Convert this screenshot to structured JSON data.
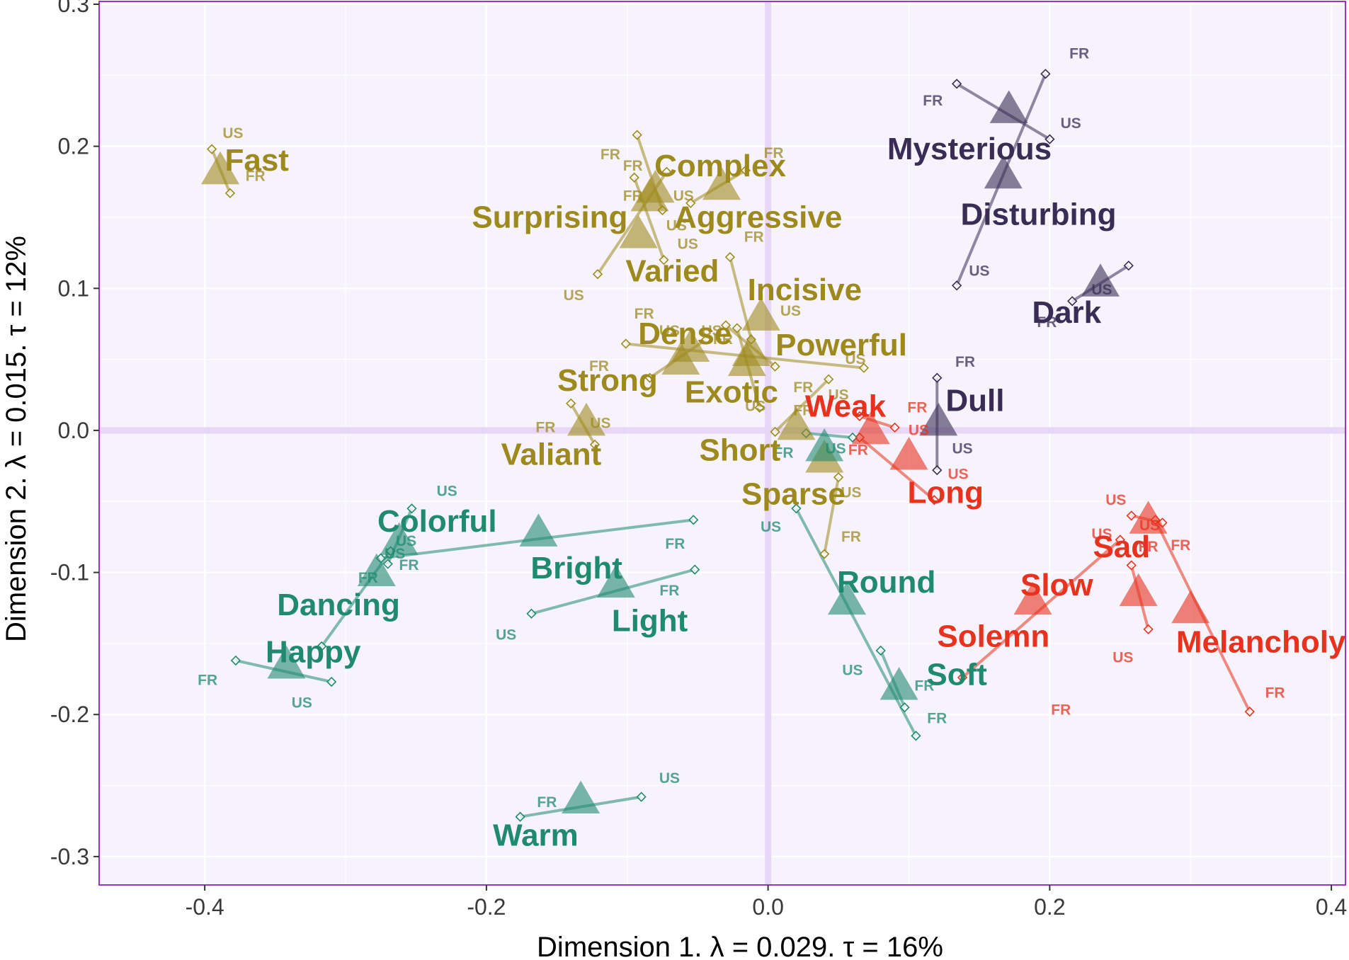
{
  "chart_data": {
    "type": "scatter",
    "xlabel": "Dimension 1.   λ = 0.029.  τ = 16%",
    "ylabel": "Dimension 2.   λ = 0.015.  τ = 12%",
    "xlim": [
      -0.475,
      0.41
    ],
    "ylim": [
      -0.32,
      0.302
    ],
    "x_ticks": [
      -0.4,
      -0.2,
      0.0,
      0.2,
      0.4
    ],
    "x_tick_labels": [
      "-0.4",
      "-0.2",
      "0.0",
      "0.2",
      "0.4"
    ],
    "y_ticks": [
      -0.3,
      -0.2,
      -0.1,
      0.0,
      0.1,
      0.2,
      0.3
    ],
    "y_tick_labels": [
      "-0.3",
      "-0.2",
      "-0.1",
      "0.0",
      "0.1",
      "0.2",
      "0.3"
    ],
    "grid": true,
    "colors": {
      "olive": "#9E8A1C",
      "teal": "#1F8A6E",
      "red": "#E8321E",
      "purple": "#3A2D55",
      "panel": "#F6F3FD",
      "frame": "#9C33C8",
      "zero_line": "#E7D6F5",
      "grid": "#FFFFFF"
    },
    "terms": [
      {
        "name": "Fast",
        "group": "olive",
        "x": -0.389,
        "y": 0.183,
        "us": [
          -0.395,
          0.198
        ],
        "fr": [
          -0.382,
          0.167
        ],
        "us_label_pos": [
          -0.38,
          0.209
        ],
        "fr_label_pos": [
          -0.364,
          0.179
        ]
      },
      {
        "name": "Complex",
        "group": "olive",
        "x": -0.08,
        "y": 0.17,
        "us": [
          -0.075,
          0.155
        ],
        "fr": [
          -0.093,
          0.208
        ],
        "us_label_pos": [
          -0.06,
          0.165
        ],
        "fr_label_pos": [
          -0.112,
          0.194
        ]
      },
      {
        "name": "Surprising",
        "group": "olive",
        "x": -0.092,
        "y": 0.138,
        "us": [
          -0.121,
          0.11
        ],
        "fr": [
          -0.072,
          0.182
        ],
        "us_label_pos": [
          -0.138,
          0.095
        ],
        "fr_label_pos": [
          -0.096,
          0.186
        ]
      },
      {
        "name": "Aggressive",
        "group": "olive",
        "x": -0.033,
        "y": 0.172,
        "us": [
          -0.055,
          0.16
        ],
        "fr": [
          -0.016,
          0.183
        ],
        "us_label_pos": [
          -0.065,
          0.144
        ],
        "fr_label_pos": [
          0.004,
          0.195
        ]
      },
      {
        "name": "Varied",
        "group": "olive",
        "x": -0.084,
        "y": 0.164,
        "us": [
          -0.095,
          0.178
        ],
        "fr": [
          -0.074,
          0.12
        ],
        "us_label_pos": [
          -0.057,
          0.131
        ],
        "fr_label_pos": [
          -0.096,
          0.165
        ]
      },
      {
        "name": "Incisive",
        "group": "olive",
        "x": -0.005,
        "y": 0.08,
        "us": [
          -0.012,
          0.064
        ],
        "fr": [
          -0.027,
          0.122
        ],
        "us_label_pos": [
          0.016,
          0.084
        ],
        "fr_label_pos": [
          -0.01,
          0.136
        ]
      },
      {
        "name": "Dense",
        "group": "olive",
        "x": -0.055,
        "y": 0.058,
        "us": [
          0.068,
          0.044
        ],
        "fr": [
          -0.101,
          0.061
        ],
        "us_label_pos": [
          -0.04,
          0.07
        ],
        "fr_label_pos": [
          -0.088,
          0.082
        ]
      },
      {
        "name": "Powerful",
        "group": "olive",
        "x": -0.012,
        "y": 0.055,
        "us": [
          0.005,
          0.045
        ],
        "fr": [
          -0.03,
          0.074
        ],
        "us_label_pos": [
          0.062,
          0.05
        ],
        "fr_label_pos": [
          -0.032,
          0.064
        ]
      },
      {
        "name": "Exotic",
        "group": "olive",
        "x": -0.015,
        "y": 0.048,
        "us": [
          -0.006,
          0.016
        ],
        "fr": [
          -0.022,
          0.072
        ],
        "us_label_pos": [
          -0.009,
          0.017
        ],
        "fr_label_pos": [
          0.025,
          0.03
        ]
      },
      {
        "name": "Strong",
        "group": "olive",
        "x": -0.062,
        "y": 0.049,
        "us": [
          -0.084,
          0.037
        ],
        "fr": [
          -0.044,
          0.064
        ],
        "us_label_pos": [
          -0.07,
          0.07
        ],
        "fr_label_pos": [
          -0.12,
          0.045
        ]
      },
      {
        "name": "Valiant",
        "group": "olive",
        "x": -0.129,
        "y": 0.006,
        "us": [
          -0.123,
          -0.01
        ],
        "fr": [
          -0.14,
          0.019
        ],
        "us_label_pos": [
          -0.119,
          0.005
        ],
        "fr_label_pos": [
          -0.158,
          0.002
        ]
      },
      {
        "name": "Short",
        "group": "olive",
        "x": 0.02,
        "y": 0.003,
        "us": [
          0.043,
          0.036
        ],
        "fr": [
          0.005,
          -0.001
        ],
        "us_label_pos": [
          0.05,
          0.025
        ],
        "fr_label_pos": [
          0.025,
          0.014
        ]
      },
      {
        "name": "Sparse",
        "group": "olive",
        "x": 0.04,
        "y": -0.02,
        "us": [
          0.05,
          -0.033
        ],
        "fr": [
          0.04,
          -0.087
        ],
        "us_label_pos": [
          0.059,
          -0.044
        ],
        "fr_label_pos": [
          0.059,
          -0.075
        ]
      },
      {
        "name": "Mysterious",
        "group": "purple",
        "x": 0.171,
        "y": 0.226,
        "us": [
          0.2,
          0.205
        ],
        "fr": [
          0.134,
          0.244
        ],
        "us_label_pos": [
          0.215,
          0.216
        ],
        "fr_label_pos": [
          0.117,
          0.232
        ]
      },
      {
        "name": "Disturbing",
        "group": "purple",
        "x": 0.167,
        "y": 0.18,
        "us": [
          0.134,
          0.102
        ],
        "fr": [
          0.197,
          0.251
        ],
        "us_label_pos": [
          0.15,
          0.112
        ],
        "fr_label_pos": [
          0.221,
          0.265
        ]
      },
      {
        "name": "Dark",
        "group": "purple",
        "x": 0.236,
        "y": 0.104,
        "us": [
          0.256,
          0.116
        ],
        "fr": [
          0.216,
          0.091
        ],
        "us_label_pos": [
          0.237,
          0.099
        ],
        "fr_label_pos": [
          0.198,
          0.076
        ]
      },
      {
        "name": "Dull",
        "group": "purple",
        "x": 0.121,
        "y": 0.006,
        "us": [
          0.12,
          -0.028
        ],
        "fr": [
          0.12,
          0.037
        ],
        "us_label_pos": [
          0.138,
          -0.013
        ],
        "fr_label_pos": [
          0.14,
          0.048
        ]
      },
      {
        "name": "Weak",
        "group": "red",
        "x": 0.073,
        "y": 0.0,
        "us": [
          0.09,
          0.002
        ],
        "fr": [
          0.065,
          0.01
        ],
        "us_label_pos": [
          0.107,
          0.0
        ],
        "fr_label_pos": [
          0.106,
          0.016
        ]
      },
      {
        "name": "Long",
        "group": "red",
        "x": 0.1,
        "y": -0.018,
        "us": [
          0.118,
          -0.049
        ],
        "fr": [
          0.065,
          -0.005
        ],
        "us_label_pos": [
          0.135,
          -0.031
        ],
        "fr_label_pos": [
          0.064,
          -0.014
        ]
      },
      {
        "name": "Slow",
        "group": "red",
        "x": 0.188,
        "y": -0.12,
        "us": [
          0.25,
          -0.077
        ],
        "fr": [
          0.138,
          -0.174
        ],
        "us_label_pos": [
          0.237,
          -0.073
        ],
        "fr_label_pos": [
          0.27,
          -0.082
        ]
      },
      {
        "name": "Sad",
        "group": "red",
        "x": 0.27,
        "y": -0.063,
        "us": [
          0.258,
          -0.06
        ],
        "fr": [
          0.28,
          -0.065
        ],
        "us_label_pos": [
          0.247,
          -0.049
        ],
        "fr_label_pos": [
          0.293,
          -0.081
        ]
      },
      {
        "name": "Solemn",
        "group": "red",
        "x": 0.263,
        "y": -0.114,
        "us": [
          0.258,
          -0.095
        ],
        "fr": [
          0.27,
          -0.14
        ],
        "us_label_pos": [
          0.252,
          -0.16
        ],
        "fr_label_pos": [
          0.208,
          -0.197
        ]
      },
      {
        "name": "Melancholy",
        "group": "red",
        "x": 0.3,
        "y": -0.126,
        "us": [
          0.275,
          -0.063
        ],
        "fr": [
          0.342,
          -0.198
        ],
        "us_label_pos": [
          0.271,
          -0.067
        ],
        "fr_label_pos": [
          0.36,
          -0.185
        ]
      },
      {
        "name": "Colorful",
        "group": "teal",
        "x": -0.262,
        "y": -0.078,
        "us": [
          -0.253,
          -0.055
        ],
        "fr": [
          -0.27,
          -0.094
        ],
        "us_label_pos": [
          -0.228,
          -0.043
        ],
        "fr_label_pos": [
          -0.255,
          -0.095
        ]
      },
      {
        "name": "Bright",
        "group": "teal",
        "x": -0.163,
        "y": -0.072,
        "us": [
          -0.053,
          -0.063
        ],
        "fr": [
          -0.275,
          -0.09
        ],
        "us_label_pos": [
          -0.257,
          -0.078
        ],
        "fr_label_pos": [
          -0.066,
          -0.08
        ]
      },
      {
        "name": "Dancing",
        "group": "teal",
        "x": -0.278,
        "y": -0.1,
        "us": [
          -0.268,
          -0.085
        ],
        "fr": [
          -0.317,
          -0.152
        ],
        "us_label_pos": [
          -0.265,
          -0.087
        ],
        "fr_label_pos": [
          -0.284,
          -0.104
        ]
      },
      {
        "name": "Light",
        "group": "teal",
        "x": -0.108,
        "y": -0.108,
        "us": [
          -0.168,
          -0.129
        ],
        "fr": [
          -0.052,
          -0.098
        ],
        "us_label_pos": [
          -0.186,
          -0.144
        ],
        "fr_label_pos": [
          -0.07,
          -0.113
        ]
      },
      {
        "name": "Happy",
        "group": "teal",
        "x": -0.342,
        "y": -0.165,
        "us": [
          -0.31,
          -0.177
        ],
        "fr": [
          -0.378,
          -0.162
        ],
        "us_label_pos": [
          -0.331,
          -0.192
        ],
        "fr_label_pos": [
          -0.398,
          -0.176
        ]
      },
      {
        "name": "Round",
        "group": "teal",
        "x": 0.056,
        "y": -0.12,
        "us": [
          0.02,
          -0.055
        ],
        "fr": [
          0.105,
          -0.215
        ],
        "us_label_pos": [
          0.002,
          -0.068
        ],
        "fr_label_pos": [
          0.12,
          -0.203
        ]
      },
      {
        "name": "Soft",
        "group": "teal",
        "x": 0.093,
        "y": -0.18,
        "us": [
          0.08,
          -0.155
        ],
        "fr": [
          0.097,
          -0.195
        ],
        "us_label_pos": [
          0.06,
          -0.169
        ],
        "fr_label_pos": [
          0.111,
          -0.18
        ]
      },
      {
        "name": "Warm",
        "group": "teal",
        "x": -0.133,
        "y": -0.26,
        "us": [
          -0.09,
          -0.258
        ],
        "fr": [
          -0.176,
          -0.272
        ],
        "us_label_pos": [
          -0.07,
          -0.245
        ],
        "fr_label_pos": [
          -0.157,
          -0.262
        ]
      },
      {
        "name": "",
        "group": "teal",
        "x": 0.04,
        "y": -0.012,
        "us": [
          0.06,
          -0.005
        ],
        "fr": [
          0.027,
          -0.002
        ],
        "us_label_pos": [
          0.048,
          -0.013
        ],
        "fr_label_pos": [
          0.011,
          -0.016
        ]
      }
    ],
    "label_positions": {
      "Fast": [
        -0.363,
        0.19
      ],
      "Complex": [
        -0.034,
        0.186
      ],
      "Surprising": [
        -0.155,
        0.15
      ],
      "Aggressive": [
        -0.007,
        0.15
      ],
      "Varied": [
        -0.068,
        0.112
      ],
      "Incisive": [
        0.026,
        0.099
      ],
      "Dense": [
        -0.059,
        0.068
      ],
      "Powerful": [
        0.052,
        0.06
      ],
      "Exotic": [
        -0.026,
        0.027
      ],
      "Strong": [
        -0.114,
        0.035
      ],
      "Valiant": [
        -0.154,
        -0.017
      ],
      "Short": [
        -0.02,
        -0.014
      ],
      "Sparse": [
        0.018,
        -0.045
      ],
      "Mysterious": [
        0.143,
        0.198
      ],
      "Disturbing": [
        0.192,
        0.152
      ],
      "Dark": [
        0.212,
        0.083
      ],
      "Dull": [
        0.147,
        0.021
      ],
      "Weak": [
        0.055,
        0.017
      ],
      "Long": [
        0.126,
        -0.044
      ],
      "Slow": [
        0.205,
        -0.109
      ],
      "Sad": [
        0.251,
        -0.082
      ],
      "Solemn": [
        0.16,
        -0.145
      ],
      "Melancholy": [
        0.35,
        -0.149
      ],
      "Colorful": [
        -0.235,
        -0.064
      ],
      "Bright": [
        -0.136,
        -0.097
      ],
      "Dancing": [
        -0.305,
        -0.123
      ],
      "Light": [
        -0.084,
        -0.134
      ],
      "Happy": [
        -0.323,
        -0.156
      ],
      "Round": [
        0.084,
        -0.107
      ],
      "Soft": [
        0.134,
        -0.172
      ],
      "Warm": [
        -0.165,
        -0.285
      ]
    }
  }
}
